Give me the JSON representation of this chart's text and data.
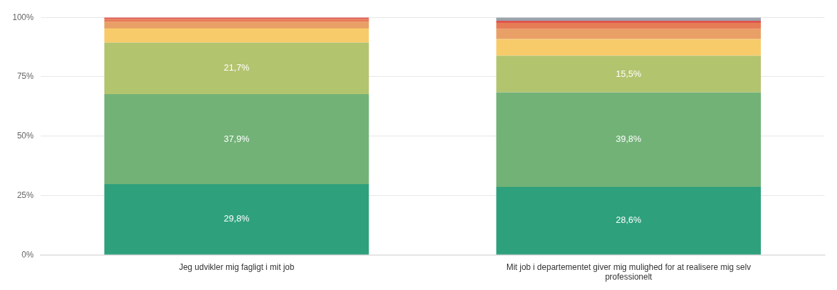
{
  "chart_data": {
    "type": "bar",
    "stacked": true,
    "categories": [
      "Jeg udvikler mig fagligt i mit job",
      "Mit job i departementet giver mig mulighed for at realisere mig selv professionelt"
    ],
    "series": [
      {
        "color": "#2ea17c",
        "values": [
          29.8,
          28.6
        ],
        "value_labels": [
          "29,8%",
          "28,6%"
        ]
      },
      {
        "color": "#72b277",
        "values": [
          37.9,
          39.8
        ],
        "value_labels": [
          "37,9%",
          "39,8%"
        ]
      },
      {
        "color": "#b3c46f",
        "values": [
          21.7,
          15.5
        ],
        "value_labels": [
          "21,7%",
          "15,5%"
        ]
      },
      {
        "color": "#f7cb6a",
        "values": [
          6.0,
          7.0
        ]
      },
      {
        "color": "#e9a066",
        "values": [
          2.7,
          4.3
        ]
      },
      {
        "color": "#e67c56",
        "values": [
          1.3,
          2.5
        ]
      },
      {
        "color": "#e0534f",
        "values": [
          0.6,
          0.9
        ]
      },
      {
        "color": "#9aa3ab",
        "values": [
          null,
          1.4
        ]
      }
    ],
    "ylim": [
      0,
      100
    ],
    "yticks": [
      {
        "value": 0,
        "label": "0%"
      },
      {
        "value": 25,
        "label": "25%"
      },
      {
        "value": 50,
        "label": "50%"
      },
      {
        "value": 75,
        "label": "75%"
      },
      {
        "value": 100,
        "label": "100%"
      }
    ],
    "grid": "y",
    "legend": false
  }
}
